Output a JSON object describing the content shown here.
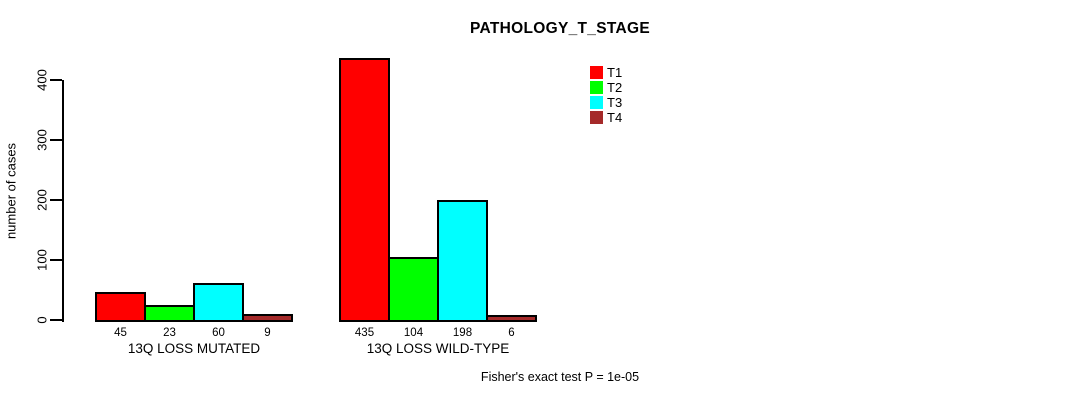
{
  "chart_data": {
    "type": "bar",
    "title": "PATHOLOGY_T_STAGE",
    "ylabel": "number of cases",
    "xlabel": "",
    "ylim": [
      0,
      435
    ],
    "yticks": [
      0,
      100,
      200,
      300,
      400
    ],
    "grid": false,
    "legend_position": "top-right-inside",
    "categories": [
      "13Q LOSS MUTATED",
      "13Q LOSS WILD-TYPE"
    ],
    "series": [
      {
        "name": "T1",
        "color": "#FF0000",
        "values": [
          45,
          435
        ]
      },
      {
        "name": "T2",
        "color": "#00FF00",
        "values": [
          23,
          104
        ]
      },
      {
        "name": "T3",
        "color": "#00FFFF",
        "values": [
          60,
          198
        ]
      },
      {
        "name": "T4",
        "color": "#A52A2A",
        "values": [
          9,
          6
        ]
      }
    ],
    "annotation": "Fisher's exact test P = 1e-05",
    "bar_border_color": "#000000",
    "text_color": "#000000",
    "background_color": "#FFFFFF"
  }
}
